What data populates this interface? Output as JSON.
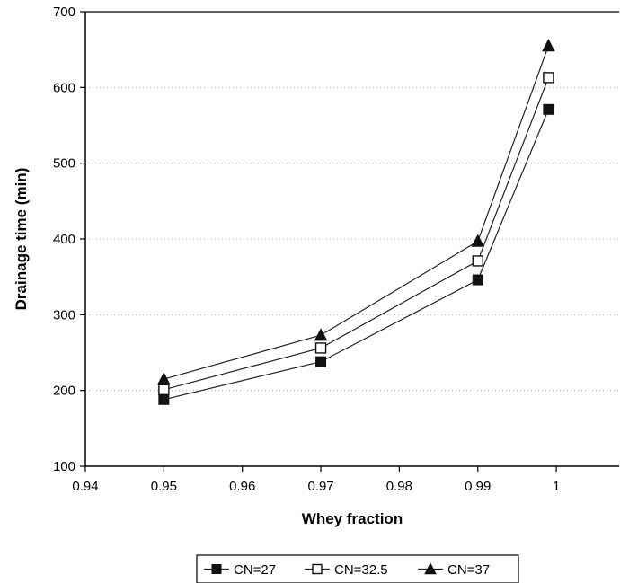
{
  "chart_data": {
    "type": "line",
    "title": "",
    "xlabel": "Whey fraction",
    "ylabel": "Drainage time (min)",
    "xlim": [
      0.94,
      1.008
    ],
    "ylim": [
      100,
      700
    ],
    "xticks": [
      {
        "value": 0.94,
        "label": "0.94"
      },
      {
        "value": 0.95,
        "label": "0.95"
      },
      {
        "value": 0.96,
        "label": "0.96"
      },
      {
        "value": 0.97,
        "label": "0.97"
      },
      {
        "value": 0.98,
        "label": "0.98"
      },
      {
        "value": 0.99,
        "label": "0.99"
      },
      {
        "value": 1.0,
        "label": "1"
      }
    ],
    "yticks": [
      {
        "value": 100,
        "label": "100"
      },
      {
        "value": 200,
        "label": "200"
      },
      {
        "value": 300,
        "label": "300"
      },
      {
        "value": 400,
        "label": "400"
      },
      {
        "value": 500,
        "label": "500"
      },
      {
        "value": 600,
        "label": "600"
      },
      {
        "value": 700,
        "label": "700"
      }
    ],
    "grid": "horizontal-dotted",
    "legend_position": "bottom-center",
    "x": [
      0.95,
      0.97,
      0.99,
      0.999
    ],
    "series": [
      {
        "name": "CN=27",
        "marker": "filled-square",
        "values": [
          188,
          238,
          346,
          571
        ]
      },
      {
        "name": "CN=32.5",
        "marker": "open-square",
        "values": [
          201,
          256,
          371,
          613
        ]
      },
      {
        "name": "CN=37",
        "marker": "filled-triangle",
        "values": [
          215,
          273,
          397,
          655
        ]
      }
    ]
  }
}
